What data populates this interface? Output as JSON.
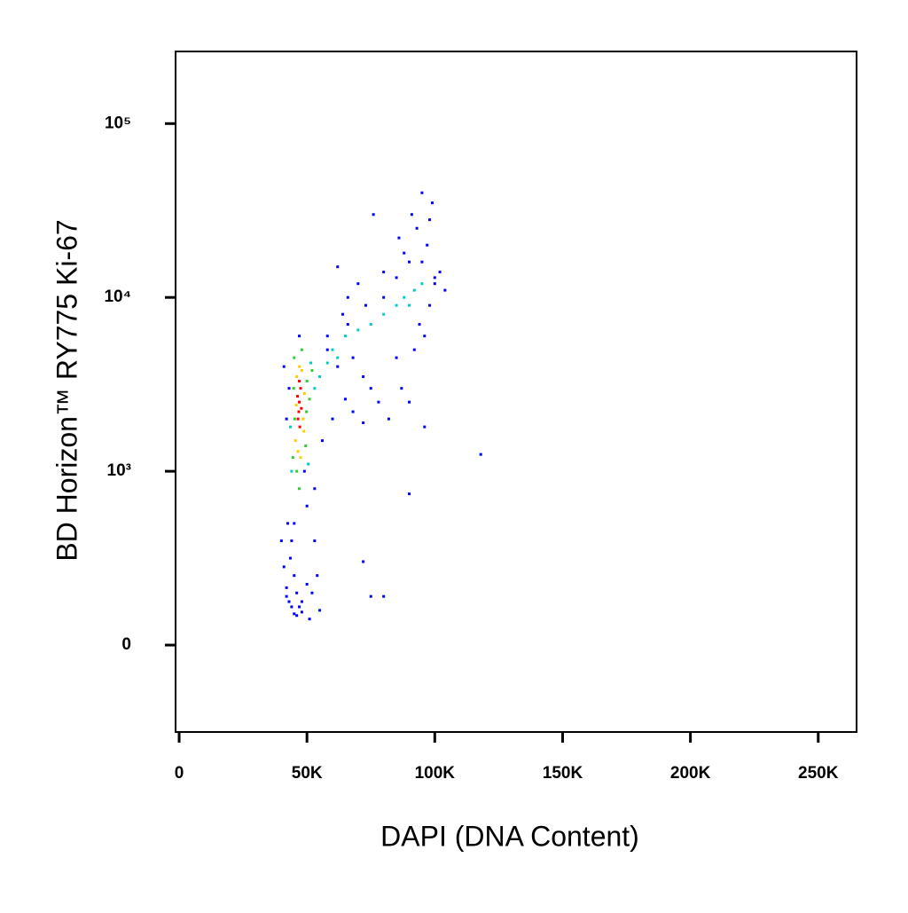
{
  "chart_data": {
    "type": "scatter",
    "xlabel": "DAPI (DNA Content)",
    "ylabel": "BD Horizon™ RY775 Ki-67",
    "xlim": [
      -1400,
      265000
    ],
    "xticks": [
      0,
      {
        "value": 50000,
        "label": "50K"
      },
      {
        "value": 100000,
        "label": "100K"
      },
      {
        "value": 150000,
        "label": "150K"
      },
      {
        "value": 200000,
        "label": "200K"
      },
      {
        "value": 250000,
        "label": "250K"
      }
    ],
    "ylim": [
      -500,
      260000
    ],
    "yscale": "biexponential",
    "yticks": [
      0,
      {
        "value": 1000,
        "label": "10³"
      },
      {
        "value": 10000,
        "label": "10⁴"
      },
      {
        "value": 100000,
        "label": "10⁵"
      }
    ],
    "grid": false,
    "series": [
      {
        "color": "#0000ff",
        "x": [
          41000,
          42000,
          43000,
          42500,
          44000,
          43500,
          45000,
          46000,
          48000,
          50000,
          52000,
          54000,
          47000,
          45000,
          43000,
          42000,
          53000,
          56000,
          60000,
          65000,
          68000,
          72000,
          75000,
          78000,
          82000,
          85000,
          87000,
          90000,
          92000,
          94000,
          96000,
          98000,
          100000,
          102000,
          104000,
          95000,
          97000,
          93000,
          91000,
          99000,
          88000,
          80000,
          70000,
          64000,
          58000,
          62000,
          66000,
          73000,
          76000,
          68000,
          72000,
          80000,
          85000,
          90000,
          95000,
          118000,
          96000,
          90000,
          72000,
          75000,
          80000,
          51000,
          55000,
          48000,
          46000,
          44000,
          42000,
          41000,
          40000,
          45000,
          50000,
          53000,
          49000,
          47000,
          100000,
          98000,
          86000,
          66000,
          58000,
          62000
        ],
        "values": [
          4000,
          2000,
          3000,
          700,
          600,
          500,
          400,
          300,
          250,
          350,
          300,
          400,
          220,
          180,
          250,
          280,
          600,
          1500,
          2000,
          2600,
          2200,
          1900,
          3000,
          2500,
          2000,
          4500,
          3000,
          2500,
          5000,
          7000,
          6000,
          9000,
          12000,
          14000,
          11000,
          16000,
          20000,
          25000,
          30000,
          35000,
          18000,
          10000,
          12000,
          8000,
          6000,
          15000,
          7000,
          9000,
          30000,
          4500,
          3500,
          14000,
          13000,
          16000,
          40000,
          1250,
          1800,
          870,
          480,
          280,
          280,
          150,
          200,
          190,
          170,
          220,
          330,
          450,
          600,
          700,
          800,
          900,
          1000,
          6000,
          13000,
          28000,
          22000,
          10000,
          5000,
          4000
        ]
      },
      {
        "color": "#00cccc",
        "x": [
          43500,
          44000,
          50500,
          51500,
          53000,
          55000,
          58000,
          60000,
          62000,
          65000,
          70000,
          75000,
          80000,
          85000,
          88000,
          92000,
          95000,
          90000
        ],
        "values": [
          1800,
          1000,
          1100,
          4200,
          3000,
          3500,
          4200,
          5000,
          4500,
          6000,
          6500,
          7000,
          8000,
          9000,
          10000,
          11000,
          12000,
          9000
        ]
      },
      {
        "color": "#33cc33",
        "x": [
          44500,
          45000,
          49500,
          50000,
          46000,
          48000,
          45200,
          49800,
          47000,
          44800,
          51000,
          52000
        ],
        "values": [
          1200,
          4500,
          1400,
          3300,
          1000,
          5000,
          2000,
          2200,
          900,
          3000,
          2600,
          3800
        ]
      },
      {
        "color": "#ffcc00",
        "x": [
          45500,
          46000,
          48500,
          49000,
          47000,
          46500,
          48000,
          45800,
          47500,
          48800
        ],
        "values": [
          1500,
          3500,
          2000,
          2800,
          4000,
          1300,
          3800,
          2400,
          1200,
          1700
        ]
      },
      {
        "color": "#ff0000",
        "x": [
          46500,
          47000,
          47500,
          46800,
          47200,
          46300,
          47800,
          47000
        ],
        "values": [
          2000,
          2500,
          3000,
          2200,
          1800,
          2700,
          2300,
          3300
        ]
      }
    ]
  }
}
